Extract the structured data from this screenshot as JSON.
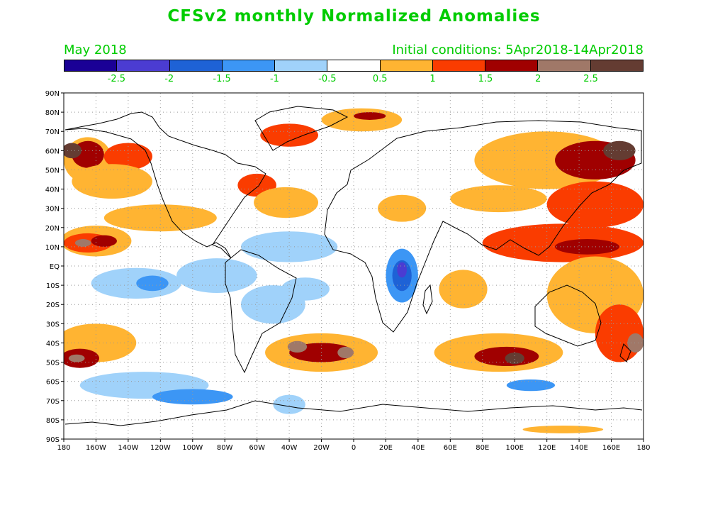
{
  "header": {
    "title": "CFSv2 monthly Normalized Anomalies",
    "month": "May 2018",
    "initial_conditions": "Initial conditions: 5Apr2018-14Apr2018"
  },
  "colorbar": {
    "colors": [
      "#1a0096",
      "#4b3cd2",
      "#1e62d6",
      "#3c96f5",
      "#a0d2fa",
      "#ffffff",
      "#ffb432",
      "#fa3c00",
      "#a00000",
      "#a07868",
      "#643c32"
    ],
    "labels": [
      "-2.5",
      "-2",
      "-1.5",
      "-1",
      "-0.5",
      "0.5",
      "1",
      "1.5",
      "2",
      "2.5"
    ]
  },
  "axes": {
    "lat_labels": [
      "90N",
      "80N",
      "70N",
      "60N",
      "50N",
      "40N",
      "30N",
      "20N",
      "10N",
      "EQ",
      "10S",
      "20S",
      "30S",
      "40S",
      "50S",
      "60S",
      "70S",
      "80S",
      "90S"
    ],
    "lon_labels": [
      "180",
      "160W",
      "140W",
      "120W",
      "100W",
      "80W",
      "60W",
      "40W",
      "20W",
      "0",
      "20E",
      "40E",
      "60E",
      "80E",
      "100E",
      "120E",
      "140E",
      "160E",
      "180"
    ]
  },
  "anomaly_regions": [
    {
      "lon": -165,
      "lat": 55,
      "rx": 15,
      "ry": 12,
      "level": 6
    },
    {
      "lon": -165,
      "lat": 58,
      "rx": 10,
      "ry": 7,
      "level": 8
    },
    {
      "lon": -175,
      "lat": 60,
      "rx": 6,
      "ry": 4,
      "level": 10
    },
    {
      "lon": -140,
      "lat": 57,
      "rx": 15,
      "ry": 7,
      "level": 7
    },
    {
      "lon": -150,
      "lat": 44,
      "rx": 25,
      "ry": 9,
      "level": 6
    },
    {
      "lon": -120,
      "lat": 25,
      "rx": 35,
      "ry": 7,
      "level": 6
    },
    {
      "lon": -160,
      "lat": 13,
      "rx": 22,
      "ry": 8,
      "level": 6
    },
    {
      "lon": -165,
      "lat": 12,
      "rx": 15,
      "ry": 5,
      "level": 7
    },
    {
      "lon": -155,
      "lat": 13,
      "rx": 8,
      "ry": 3,
      "level": 8
    },
    {
      "lon": -168,
      "lat": 12,
      "rx": 5,
      "ry": 2,
      "level": 9
    },
    {
      "lon": -135,
      "lat": -9,
      "rx": 28,
      "ry": 8,
      "level": 4
    },
    {
      "lon": -125,
      "lat": -9,
      "rx": 10,
      "ry": 4,
      "level": 3
    },
    {
      "lon": -85,
      "lat": -5,
      "rx": 25,
      "ry": 9,
      "level": 4
    },
    {
      "lon": -40,
      "lat": 10,
      "rx": 30,
      "ry": 8,
      "level": 4
    },
    {
      "lon": -30,
      "lat": -12,
      "rx": 15,
      "ry": 6,
      "level": 4
    },
    {
      "lon": -50,
      "lat": -20,
      "rx": 20,
      "ry": 10,
      "level": 4
    },
    {
      "lon": -160,
      "lat": -40,
      "rx": 25,
      "ry": 10,
      "level": 6
    },
    {
      "lon": -170,
      "lat": -48,
      "rx": 12,
      "ry": 5,
      "level": 8
    },
    {
      "lon": -172,
      "lat": -48,
      "rx": 5,
      "ry": 2,
      "level": 9
    },
    {
      "lon": -130,
      "lat": -62,
      "rx": 40,
      "ry": 7,
      "level": 4
    },
    {
      "lon": -100,
      "lat": -68,
      "rx": 25,
      "ry": 4,
      "level": 3
    },
    {
      "lon": -40,
      "lat": -72,
      "rx": 10,
      "ry": 5,
      "level": 4
    },
    {
      "lon": -20,
      "lat": -45,
      "rx": 35,
      "ry": 10,
      "level": 6
    },
    {
      "lon": -20,
      "lat": -45,
      "rx": 20,
      "ry": 5,
      "level": 8
    },
    {
      "lon": -35,
      "lat": -42,
      "rx": 6,
      "ry": 3,
      "level": 9
    },
    {
      "lon": -5,
      "lat": -45,
      "rx": 5,
      "ry": 3,
      "level": 9
    },
    {
      "lon": -60,
      "lat": 42,
      "rx": 12,
      "ry": 6,
      "level": 7
    },
    {
      "lon": -42,
      "lat": 33,
      "rx": 20,
      "ry": 8,
      "level": 6
    },
    {
      "lon": -40,
      "lat": 68,
      "rx": 18,
      "ry": 6,
      "level": 7
    },
    {
      "lon": 5,
      "lat": 76,
      "rx": 25,
      "ry": 6,
      "level": 6
    },
    {
      "lon": 10,
      "lat": 78,
      "rx": 10,
      "ry": 2,
      "level": 8
    },
    {
      "lon": 30,
      "lat": -5,
      "rx": 10,
      "ry": 14,
      "level": 3
    },
    {
      "lon": 30,
      "lat": -5,
      "rx": 6,
      "ry": 8,
      "level": 2
    },
    {
      "lon": 30,
      "lat": -2,
      "rx": 3,
      "ry": 4,
      "level": 1
    },
    {
      "lon": 30,
      "lat": 30,
      "rx": 15,
      "ry": 7,
      "level": 6
    },
    {
      "lon": 68,
      "lat": -12,
      "rx": 15,
      "ry": 10,
      "level": 6
    },
    {
      "lon": 90,
      "lat": -45,
      "rx": 40,
      "ry": 10,
      "level": 6
    },
    {
      "lon": 95,
      "lat": -47,
      "rx": 20,
      "ry": 5,
      "level": 8
    },
    {
      "lon": 100,
      "lat": -48,
      "rx": 6,
      "ry": 3,
      "level": 10
    },
    {
      "lon": 90,
      "lat": 35,
      "rx": 30,
      "ry": 7,
      "level": 6
    },
    {
      "lon": 120,
      "lat": 55,
      "rx": 45,
      "ry": 15,
      "level": 6
    },
    {
      "lon": 150,
      "lat": 55,
      "rx": 25,
      "ry": 10,
      "level": 8
    },
    {
      "lon": 165,
      "lat": 60,
      "rx": 10,
      "ry": 5,
      "level": 10
    },
    {
      "lon": 150,
      "lat": 32,
      "rx": 30,
      "ry": 12,
      "level": 7
    },
    {
      "lon": 130,
      "lat": 12,
      "rx": 50,
      "ry": 10,
      "level": 7
    },
    {
      "lon": 145,
      "lat": 10,
      "rx": 20,
      "ry": 4,
      "level": 8
    },
    {
      "lon": 150,
      "lat": -15,
      "rx": 30,
      "ry": 20,
      "level": 6
    },
    {
      "lon": 165,
      "lat": -35,
      "rx": 15,
      "ry": 15,
      "level": 7
    },
    {
      "lon": 175,
      "lat": -40,
      "rx": 5,
      "ry": 5,
      "level": 9
    },
    {
      "lon": 110,
      "lat": -62,
      "rx": 15,
      "ry": 3,
      "level": 3
    },
    {
      "lon": 130,
      "lat": -85,
      "rx": 25,
      "ry": 2,
      "level": 6
    }
  ]
}
